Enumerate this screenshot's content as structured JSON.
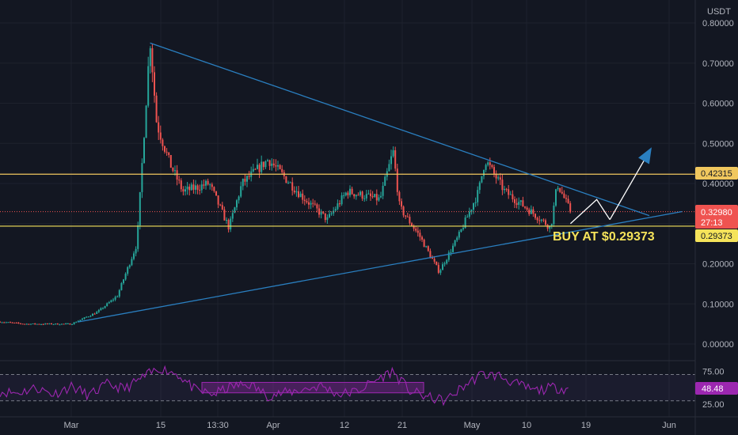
{
  "currency_label": "USDT",
  "colors": {
    "background": "#131722",
    "up": "#26a69a",
    "down": "#ef5350",
    "trendline": "#2a7fc0",
    "level_line": "#f0c75e",
    "rsi_line": "#9c27b0",
    "annotation": "#f5e35a",
    "projection": "#ffffff",
    "arrow": "#2a7fc0"
  },
  "annotation": {
    "text": "BUY AT $0.29373"
  },
  "price_tags": {
    "resistance": "0.42315",
    "current": "0.32980",
    "countdown": "27:13",
    "support": "0.29373"
  },
  "rsi_value": "48.48",
  "chart_data": [
    {
      "type": "candlestick",
      "title": "",
      "x_ticks": [
        "Mar",
        "15",
        "13:30",
        "Apr",
        "12",
        "21",
        "May",
        "10",
        "19",
        "Jun"
      ],
      "y_ticks": [
        "0.80000",
        "0.70000",
        "0.60000",
        "0.50000",
        "0.40000",
        "0.30000",
        "0.20000",
        "0.10000",
        "0.00000"
      ],
      "ylim": [
        0.0,
        0.8
      ],
      "price_path": [
        {
          "t": "Feb 15",
          "v": 0.06
        },
        {
          "t": "Feb 22",
          "v": 0.05
        },
        {
          "t": "Mar 1",
          "v": 0.05
        },
        {
          "t": "Mar 5",
          "v": 0.08
        },
        {
          "t": "Mar 8",
          "v": 0.12
        },
        {
          "t": "Mar 11",
          "v": 0.25
        },
        {
          "t": "Mar 13",
          "v": 0.76
        },
        {
          "t": "Mar 14",
          "v": 0.55
        },
        {
          "t": "Mar 16",
          "v": 0.45
        },
        {
          "t": "Mar 18",
          "v": 0.38
        },
        {
          "t": "Mar 22",
          "v": 0.4
        },
        {
          "t": "Mar 25",
          "v": 0.29
        },
        {
          "t": "Mar 27",
          "v": 0.4
        },
        {
          "t": "Mar 31",
          "v": 0.46
        },
        {
          "t": "Apr 5",
          "v": 0.37
        },
        {
          "t": "Apr 9",
          "v": 0.31
        },
        {
          "t": "Apr 12",
          "v": 0.38
        },
        {
          "t": "Apr 17",
          "v": 0.36
        },
        {
          "t": "Apr 19",
          "v": 0.48
        },
        {
          "t": "Apr 20",
          "v": 0.34
        },
        {
          "t": "Apr 23",
          "v": 0.27
        },
        {
          "t": "Apr 26",
          "v": 0.18
        },
        {
          "t": "Apr 29",
          "v": 0.27
        },
        {
          "t": "May 2",
          "v": 0.38
        },
        {
          "t": "May 3",
          "v": 0.46
        },
        {
          "t": "May 6",
          "v": 0.38
        },
        {
          "t": "May 10",
          "v": 0.33
        },
        {
          "t": "May 13",
          "v": 0.29
        },
        {
          "t": "May 14",
          "v": 0.4
        },
        {
          "t": "May 16",
          "v": 0.33
        }
      ],
      "horizontal_levels": [
        0.42315,
        0.3298,
        0.29373
      ],
      "trendlines": [
        {
          "name": "descending",
          "from": {
            "t": "Mar 13",
            "v": 0.75
          },
          "to": {
            "t": "May 28",
            "v": 0.32
          }
        },
        {
          "name": "ascending",
          "from": {
            "t": "Mar 2",
            "v": 0.055
          },
          "to": {
            "t": "Jun 2",
            "v": 0.33
          }
        }
      ],
      "projection_path": [
        {
          "t": "May 16",
          "v": 0.3
        },
        {
          "t": "May 20",
          "v": 0.36
        },
        {
          "t": "May 22",
          "v": 0.31
        },
        {
          "t": "May 28",
          "v": 0.48
        }
      ]
    },
    {
      "type": "line",
      "title": "",
      "y_ticks": [
        "75.00",
        "25.00"
      ],
      "ylim": [
        20,
        85
      ],
      "bands": [
        70,
        30
      ],
      "values": [
        44,
        42,
        50,
        40,
        52,
        38,
        55,
        48,
        65,
        80,
        70,
        45,
        40,
        52,
        55,
        38,
        42,
        47,
        53,
        40,
        44,
        60,
        75,
        45,
        35,
        30,
        52,
        70,
        68,
        55,
        45,
        50,
        48
      ],
      "highlight_range": [
        0.455,
        0.57
      ],
      "highlight_label": ""
    }
  ]
}
